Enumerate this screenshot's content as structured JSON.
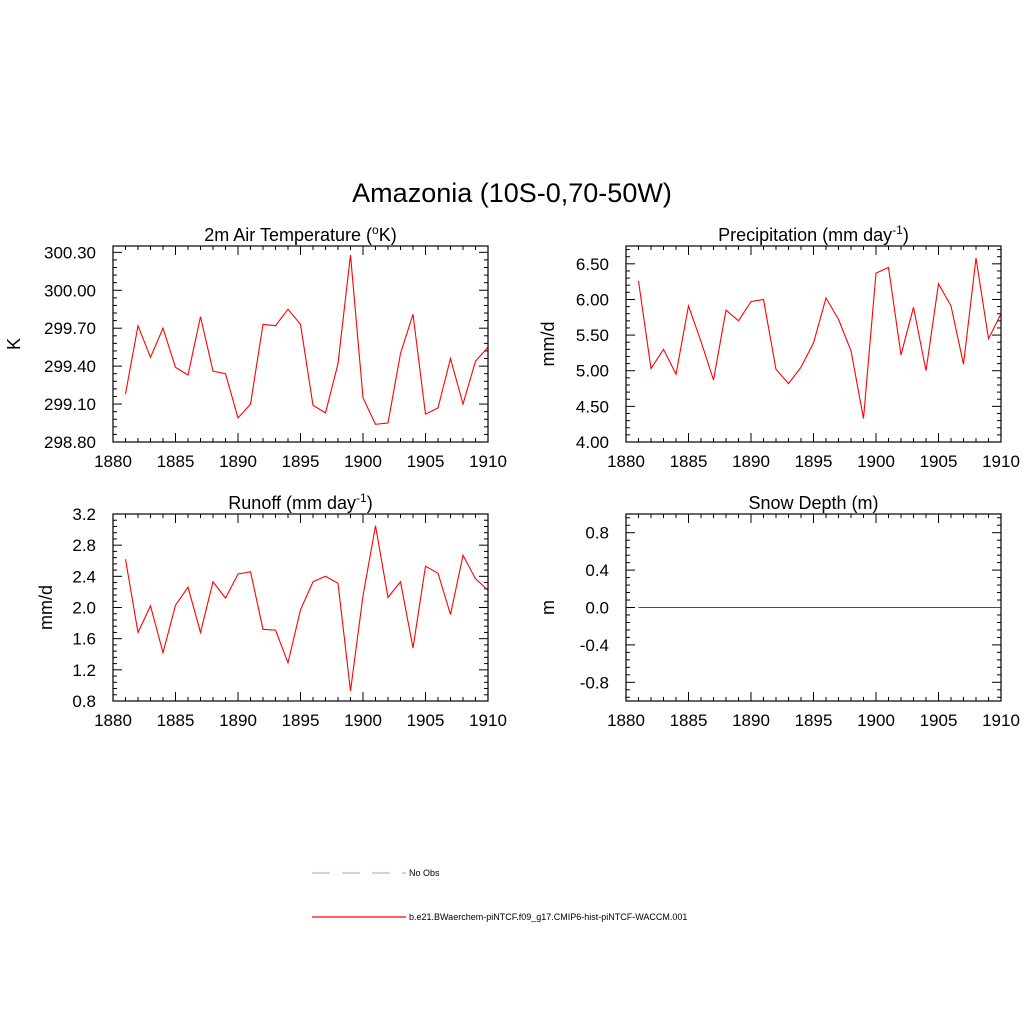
{
  "figure": {
    "title": "Amazonia (10S-0,70-50W)",
    "legend": [
      {
        "label": "No Obs",
        "color": "#b0b4e8",
        "style": "dashed"
      },
      {
        "label": "b.e21.BWaerchem-piNTCF.f09_g17.CMIP6-hist-piNTCF-WACCM.001",
        "color": "#ff0000",
        "style": "solid"
      }
    ]
  },
  "colors": {
    "series": "#ff0000",
    "obs": "#b0b4e8",
    "axis": "#000000"
  },
  "chart_data": [
    {
      "type": "line",
      "title_main": "2m Air Temperature (",
      "title_sup": "o",
      "title_tail": "K)",
      "ylabel": "K",
      "xlim": [
        1880,
        1910
      ],
      "ylim": [
        298.8,
        300.35
      ],
      "xticks": [
        "1880",
        "1885",
        "1890",
        "1895",
        "1900",
        "1905",
        "1910"
      ],
      "yticks": [
        "298.80",
        "299.10",
        "299.40",
        "299.70",
        "300.00",
        "300.30"
      ],
      "x": [
        1881,
        1882,
        1883,
        1884,
        1885,
        1886,
        1887,
        1888,
        1889,
        1890,
        1891,
        1892,
        1893,
        1894,
        1895,
        1896,
        1897,
        1898,
        1899,
        1900,
        1901,
        1902,
        1903,
        1904,
        1905,
        1906,
        1907,
        1908,
        1909,
        1910
      ],
      "series": [
        {
          "name": "b.e21.BWaerchem-piNTCF.f09_g17.CMIP6-hist-piNTCF-WACCM.001",
          "values": [
            299.18,
            299.72,
            299.47,
            299.7,
            299.39,
            299.33,
            299.79,
            299.36,
            299.34,
            298.99,
            299.1,
            299.73,
            299.72,
            299.85,
            299.73,
            299.09,
            299.03,
            299.42,
            300.28,
            299.15,
            298.94,
            298.95,
            299.5,
            299.81,
            299.02,
            299.07,
            299.46,
            299.1,
            299.44,
            299.55
          ]
        }
      ]
    },
    {
      "type": "line",
      "title_main": "Precipitation (mm day",
      "title_sup": "-1",
      "title_tail": ")",
      "ylabel": "mm/d",
      "xlim": [
        1880,
        1910
      ],
      "ylim": [
        4.0,
        6.75
      ],
      "xticks": [
        "1880",
        "1885",
        "1890",
        "1895",
        "1900",
        "1905",
        "1910"
      ],
      "yticks": [
        "4.00",
        "4.50",
        "5.00",
        "5.50",
        "6.00",
        "6.50"
      ],
      "x": [
        1881,
        1882,
        1883,
        1884,
        1885,
        1886,
        1887,
        1888,
        1889,
        1890,
        1891,
        1892,
        1893,
        1894,
        1895,
        1896,
        1897,
        1898,
        1899,
        1900,
        1901,
        1902,
        1903,
        1904,
        1905,
        1906,
        1907,
        1908,
        1909,
        1910
      ],
      "series": [
        {
          "name": "b.e21.BWaerchem-piNTCF.f09_g17.CMIP6-hist-piNTCF-WACCM.001",
          "values": [
            6.26,
            5.03,
            5.3,
            4.95,
            5.91,
            5.41,
            4.87,
            5.85,
            5.7,
            5.97,
            6.0,
            5.02,
            4.82,
            5.05,
            5.39,
            6.02,
            5.72,
            5.28,
            4.33,
            6.37,
            6.45,
            5.22,
            5.89,
            5.0,
            6.22,
            5.91,
            5.09,
            6.58,
            5.45,
            5.8
          ]
        }
      ]
    },
    {
      "type": "line",
      "title_main": "Runoff (mm day",
      "title_sup": "-1",
      "title_tail": ")",
      "ylabel": "mm/d",
      "xlim": [
        1880,
        1910
      ],
      "ylim": [
        0.8,
        3.2
      ],
      "xticks": [
        "1880",
        "1885",
        "1890",
        "1895",
        "1900",
        "1905",
        "1910"
      ],
      "yticks": [
        "0.8",
        "1.2",
        "1.6",
        "2.0",
        "2.4",
        "2.8",
        "3.2"
      ],
      "x": [
        1881,
        1882,
        1883,
        1884,
        1885,
        1886,
        1887,
        1888,
        1889,
        1890,
        1891,
        1892,
        1893,
        1894,
        1895,
        1896,
        1897,
        1898,
        1899,
        1900,
        1901,
        1902,
        1903,
        1904,
        1905,
        1906,
        1907,
        1908,
        1909,
        1910
      ],
      "series": [
        {
          "name": "b.e21.BWaerchem-piNTCF.f09_g17.CMIP6-hist-piNTCF-WACCM.001",
          "values": [
            2.62,
            1.68,
            2.02,
            1.42,
            2.03,
            2.26,
            1.68,
            2.33,
            2.12,
            2.43,
            2.46,
            1.72,
            1.71,
            1.29,
            1.97,
            2.33,
            2.4,
            2.31,
            0.93,
            2.15,
            3.05,
            2.13,
            2.33,
            1.48,
            2.53,
            2.44,
            1.91,
            2.67,
            2.37,
            2.22
          ]
        }
      ]
    },
    {
      "type": "line",
      "title_main": "Snow Depth (m)",
      "title_sup": "",
      "title_tail": "",
      "ylabel": "m",
      "xlim": [
        1880,
        1910
      ],
      "ylim": [
        -1.0,
        1.0
      ],
      "xticks": [
        "1880",
        "1885",
        "1890",
        "1895",
        "1900",
        "1905",
        "1910"
      ],
      "yticks": [
        "-0.8",
        "-0.4",
        "0.0",
        "0.4",
        "0.8"
      ],
      "x": [
        1881,
        1882,
        1883,
        1884,
        1885,
        1886,
        1887,
        1888,
        1889,
        1890,
        1891,
        1892,
        1893,
        1894,
        1895,
        1896,
        1897,
        1898,
        1899,
        1900,
        1901,
        1902,
        1903,
        1904,
        1905,
        1906,
        1907,
        1908,
        1909,
        1910
      ],
      "series": [
        {
          "name": "b.e21.BWaerchem-piNTCF.f09_g17.CMIP6-hist-piNTCF-WACCM.001",
          "values": [
            0,
            0,
            0,
            0,
            0,
            0,
            0,
            0,
            0,
            0,
            0,
            0,
            0,
            0,
            0,
            0,
            0,
            0,
            0,
            0,
            0,
            0,
            0,
            0,
            0,
            0,
            0,
            0,
            0,
            0
          ]
        }
      ]
    }
  ]
}
